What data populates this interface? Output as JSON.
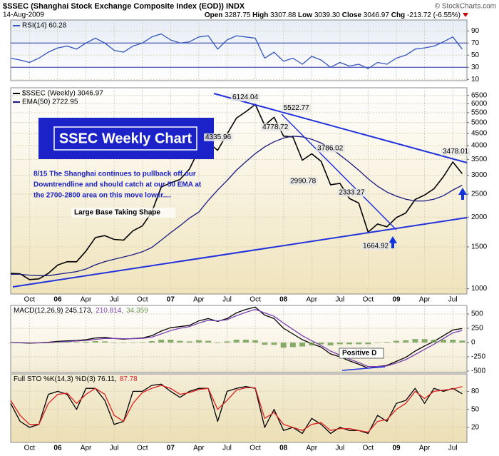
{
  "header": {
    "title": "$SSEC (Shanghai Stock Exchange Composite Index (EOD)) INDX",
    "source": "© StockCharts.com",
    "date": "14-Aug-2009",
    "quote": [
      {
        "label": "Open",
        "value": "3287.75"
      },
      {
        "label": "High",
        "value": "3307.88"
      },
      {
        "label": "Low",
        "value": "3039.30"
      },
      {
        "label": "Close",
        "value": "3046.97"
      },
      {
        "label": "Chg",
        "value": "-213.72 (-6.55%)"
      }
    ]
  },
  "chart_data": [
    {
      "type": "line",
      "x": [
        0,
        1,
        2,
        3,
        4,
        5,
        6,
        7,
        8,
        9,
        10,
        11,
        12,
        13,
        14,
        15,
        16,
        17,
        18,
        19,
        20,
        21,
        22,
        23,
        24,
        25,
        26,
        27,
        28,
        29,
        30,
        31,
        32,
        33,
        34,
        35,
        36,
        37,
        38,
        39,
        40,
        41,
        42,
        43,
        44,
        45,
        46,
        47,
        48
      ],
      "xlim": [
        0,
        48.5
      ],
      "ylim": [
        8,
        108
      ],
      "yticks": [
        90,
        70,
        50,
        30,
        10
      ],
      "reference_lines": [
        70,
        30
      ],
      "series": [
        {
          "name": "RSI(14) 60.28",
          "color": "#3355bb",
          "values": [
            45,
            42,
            38,
            45,
            55,
            62,
            65,
            60,
            70,
            78,
            70,
            58,
            55,
            65,
            70,
            80,
            85,
            75,
            70,
            72,
            80,
            82,
            60,
            75,
            82,
            80,
            78,
            45,
            55,
            40,
            45,
            35,
            48,
            42,
            30,
            38,
            32,
            35,
            28,
            38,
            35,
            45,
            50,
            60,
            62,
            65,
            72,
            80,
            60
          ]
        }
      ]
    },
    {
      "type": "line",
      "log": true,
      "x": [
        0,
        1,
        2,
        3,
        4,
        5,
        6,
        7,
        8,
        9,
        10,
        11,
        12,
        13,
        14,
        15,
        16,
        17,
        18,
        19,
        20,
        21,
        22,
        23,
        24,
        25,
        26,
        27,
        28,
        29,
        30,
        31,
        32,
        33,
        34,
        35,
        36,
        37,
        38,
        39,
        40,
        41,
        42,
        43,
        44,
        45,
        46,
        47,
        48
      ],
      "xlim": [
        0,
        48.5
      ],
      "ylim": [
        950,
        7000
      ],
      "yticks": [
        6500,
        6000,
        5500,
        5000,
        4500,
        4000,
        3500,
        3000,
        2500,
        2000,
        1500,
        1000
      ],
      "xticks": [
        {
          "value": 2,
          "label": "Oct"
        },
        {
          "value": 5,
          "label": "06"
        },
        {
          "value": 8,
          "label": "Apr"
        },
        {
          "value": 11,
          "label": "Jul"
        },
        {
          "value": 14,
          "label": "Oct"
        },
        {
          "value": 17,
          "label": "07"
        },
        {
          "value": 20,
          "label": "Apr"
        },
        {
          "value": 23,
          "label": "Jul"
        },
        {
          "value": 26,
          "label": "Oct"
        },
        {
          "value": 29,
          "label": "08"
        },
        {
          "value": 32,
          "label": "Apr"
        },
        {
          "value": 35,
          "label": "Jul"
        },
        {
          "value": 38,
          "label": "Oct"
        },
        {
          "value": 41,
          "label": "09"
        },
        {
          "value": 44,
          "label": "Apr"
        },
        {
          "value": 47,
          "label": "Jul"
        }
      ],
      "series": [
        {
          "name": "$SSEC (Weekly) 3046.97",
          "color": "#000000",
          "values": [
            1160,
            1155,
            1092,
            1100,
            1161,
            1258,
            1299,
            1298,
            1440,
            1641,
            1672,
            1612,
            1601,
            1752,
            1837,
            2099,
            2675,
            2786,
            2881,
            3183,
            3841,
            4109,
            3820,
            4471,
            5218,
            5552,
            5954,
            4871,
            5262,
            4383,
            4348,
            3472,
            3693,
            3433,
            2736,
            2775,
            2397,
            2293,
            1729,
            1871,
            1821,
            1991,
            2082,
            2373,
            2477,
            2633,
            2959,
            3412,
            3047
          ]
        },
        {
          "name": "EMA(50) 2722.95",
          "color": "#1a1a80",
          "values": [
            1150,
            1150,
            1140,
            1135,
            1135,
            1150,
            1165,
            1180,
            1210,
            1260,
            1300,
            1330,
            1360,
            1390,
            1430,
            1490,
            1600,
            1720,
            1840,
            1980,
            2100,
            2350,
            2600,
            2850,
            3150,
            3420,
            3700,
            3950,
            4150,
            4300,
            4380,
            4350,
            4250,
            4100,
            3900,
            3650,
            3400,
            3150,
            2900,
            2700,
            2550,
            2450,
            2380,
            2340,
            2340,
            2380,
            2460,
            2600,
            2723
          ]
        }
      ],
      "price_labels": [
        {
          "x": 26.3,
          "value": 6124.04
        },
        {
          "x": 29.0,
          "value": 5522.77
        },
        {
          "x": 29.8,
          "value": 4778.72
        },
        {
          "x": 21.3,
          "value": 4335.96
        },
        {
          "x": 32.3,
          "value": 3786.02
        },
        {
          "x": 32.6,
          "value": 2990.78
        },
        {
          "x": 35.5,
          "value": 2333.27
        },
        {
          "x": 38.5,
          "value": 1664.92
        },
        {
          "x": 47.3,
          "value": 3478.01
        }
      ],
      "annotations": {
        "title_box": "SSEC Weekly Chart",
        "note": [
          "8/15  The Shanghai continues to pullback off our",
          "Downtrendline and should catch at our 50 EMA at",
          "the 2700-2800 area on this move lower...."
        ],
        "base_label": "Large Base Taking Shape"
      }
    },
    {
      "type": "line",
      "x": [
        0,
        1,
        2,
        3,
        4,
        5,
        6,
        7,
        8,
        9,
        10,
        11,
        12,
        13,
        14,
        15,
        16,
        17,
        18,
        19,
        20,
        21,
        22,
        23,
        24,
        25,
        26,
        27,
        28,
        29,
        30,
        31,
        32,
        33,
        34,
        35,
        36,
        37,
        38,
        39,
        40,
        41,
        42,
        43,
        44,
        45,
        46,
        47,
        48
      ],
      "xlim": [
        0,
        48.5
      ],
      "ylim": [
        -525,
        650
      ],
      "yticks": [
        500,
        250,
        0,
        -250,
        -500
      ],
      "series": [
        {
          "name": "MACD(12,26,9) 245.173,",
          "color": "#000000",
          "values": [
            0,
            -5,
            -10,
            -5,
            5,
            20,
            30,
            35,
            50,
            80,
            90,
            70,
            60,
            70,
            80,
            120,
            200,
            260,
            280,
            300,
            380,
            420,
            370,
            420,
            520,
            580,
            620,
            480,
            420,
            250,
            150,
            50,
            -20,
            -80,
            -200,
            -250,
            -320,
            -380,
            -450,
            -420,
            -400,
            -330,
            -260,
            -150,
            -60,
            20,
            120,
            220,
            245
          ]
        },
        {
          "name": "210.814,",
          "color": "#7a3fb0",
          "values": [
            0,
            -2,
            -5,
            -6,
            -2,
            8,
            18,
            26,
            36,
            55,
            70,
            72,
            67,
            68,
            73,
            95,
            150,
            210,
            250,
            280,
            340,
            390,
            380,
            400,
            470,
            530,
            580,
            520,
            460,
            340,
            230,
            120,
            30,
            -50,
            -150,
            -220,
            -290,
            -350,
            -420,
            -420,
            -410,
            -360,
            -300,
            -210,
            -120,
            -30,
            70,
            170,
            211
          ]
        },
        {
          "name": "34.359",
          "type": "bar",
          "color": "#6a9a4a",
          "values": [
            0,
            -3,
            -5,
            1,
            7,
            12,
            12,
            9,
            14,
            25,
            20,
            -2,
            -7,
            2,
            7,
            25,
            50,
            50,
            30,
            20,
            40,
            30,
            -10,
            20,
            50,
            50,
            40,
            -40,
            -40,
            -90,
            -80,
            -70,
            -50,
            -30,
            -50,
            -30,
            -30,
            -30,
            -30,
            0,
            10,
            30,
            40,
            60,
            60,
            50,
            50,
            50,
            34
          ]
        }
      ],
      "annotations": {
        "divergence": "Positive D"
      }
    },
    {
      "type": "line",
      "x": [
        0,
        1,
        2,
        3,
        4,
        5,
        6,
        7,
        8,
        9,
        10,
        11,
        12,
        13,
        14,
        15,
        16,
        17,
        18,
        19,
        20,
        21,
        22,
        23,
        24,
        25,
        26,
        27,
        28,
        29,
        30,
        31,
        32,
        33,
        34,
        35,
        36,
        37,
        38,
        39,
        40,
        41,
        42,
        43,
        44,
        45,
        46,
        47,
        48
      ],
      "xlim": [
        0,
        48.5
      ],
      "ylim": [
        -5,
        109
      ],
      "yticks": [
        80,
        50,
        20
      ],
      "xticks": [
        {
          "value": 2,
          "label": "Oct"
        },
        {
          "value": 5,
          "label": "06"
        },
        {
          "value": 8,
          "label": "Apr"
        },
        {
          "value": 11,
          "label": "Jul"
        },
        {
          "value": 14,
          "label": "Oct"
        },
        {
          "value": 17,
          "label": "07"
        },
        {
          "value": 20,
          "label": "Apr"
        },
        {
          "value": 23,
          "label": "Jul"
        },
        {
          "value": 26,
          "label": "Oct"
        },
        {
          "value": 29,
          "label": "08"
        },
        {
          "value": 32,
          "label": "Apr"
        },
        {
          "value": 35,
          "label": "Jul"
        },
        {
          "value": 38,
          "label": "Oct"
        },
        {
          "value": 41,
          "label": "09"
        },
        {
          "value": 44,
          "label": "Apr"
        },
        {
          "value": 47,
          "label": "Jul"
        }
      ],
      "series": [
        {
          "name": "Full STO %K(14,3) %D(3) 76.11,",
          "color": "#000000",
          "values": [
            60,
            30,
            20,
            25,
            75,
            80,
            75,
            50,
            85,
            85,
            65,
            25,
            30,
            80,
            80,
            90,
            92,
            80,
            70,
            80,
            85,
            85,
            30,
            80,
            85,
            88,
            85,
            20,
            50,
            15,
            20,
            10,
            35,
            25,
            10,
            20,
            15,
            15,
            10,
            40,
            30,
            60,
            65,
            85,
            60,
            85,
            80,
            85,
            76
          ]
        },
        {
          "name": "87.78",
          "color": "#dd2222",
          "values": [
            65,
            40,
            25,
            25,
            60,
            75,
            77,
            60,
            75,
            85,
            75,
            40,
            30,
            60,
            78,
            85,
            90,
            85,
            75,
            78,
            83,
            85,
            50,
            65,
            82,
            86,
            86,
            35,
            45,
            25,
            20,
            15,
            25,
            28,
            15,
            18,
            18,
            15,
            12,
            30,
            33,
            50,
            60,
            80,
            68,
            80,
            82,
            84,
            88
          ]
        }
      ]
    }
  ]
}
